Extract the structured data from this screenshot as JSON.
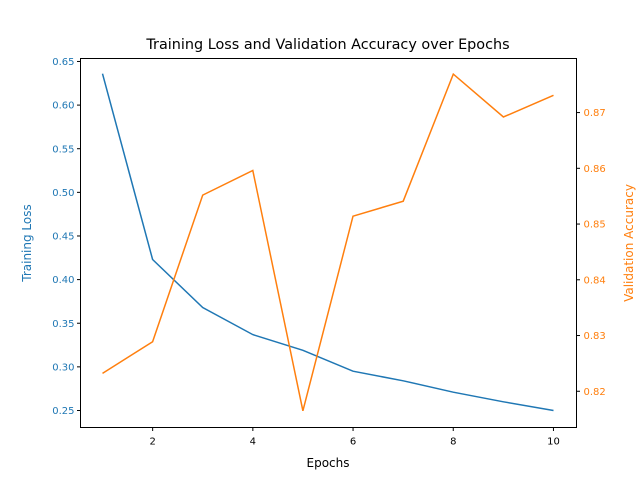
{
  "chart_data": {
    "type": "line",
    "title": "Training Loss and Validation Accuracy over Epochs",
    "xlabel": "Epochs",
    "ylabel_left": "Training Loss",
    "ylabel_right": "Validation Accuracy",
    "x": [
      1,
      2,
      3,
      4,
      5,
      6,
      7,
      8,
      9,
      10
    ],
    "xlim": [
      0.56,
      10.46
    ],
    "xticks": [
      2,
      4,
      6,
      8,
      10
    ],
    "series": [
      {
        "name": "Training Loss",
        "axis": "left",
        "color": "#1f77b4",
        "values": [
          0.636,
          0.423,
          0.368,
          0.337,
          0.319,
          0.295,
          0.284,
          0.271,
          0.26,
          0.25
        ]
      },
      {
        "name": "Validation Accuracy",
        "axis": "right",
        "color": "#ff7f0e",
        "values": [
          0.8232,
          0.8289,
          0.8552,
          0.8596,
          0.8165,
          0.8514,
          0.8541,
          0.8769,
          0.8692,
          0.8731
        ]
      }
    ],
    "ylim_left": [
      0.2305,
      0.6534
    ],
    "yticks_left": [
      "0.25",
      "0.30",
      "0.35",
      "0.40",
      "0.45",
      "0.50",
      "0.55",
      "0.60",
      "0.65"
    ],
    "ylim_right": [
      0.8135,
      0.8797
    ],
    "yticks_right": [
      "0.82",
      "0.83",
      "0.84",
      "0.85",
      "0.86",
      "0.87"
    ],
    "grid": false,
    "legend": "none"
  }
}
